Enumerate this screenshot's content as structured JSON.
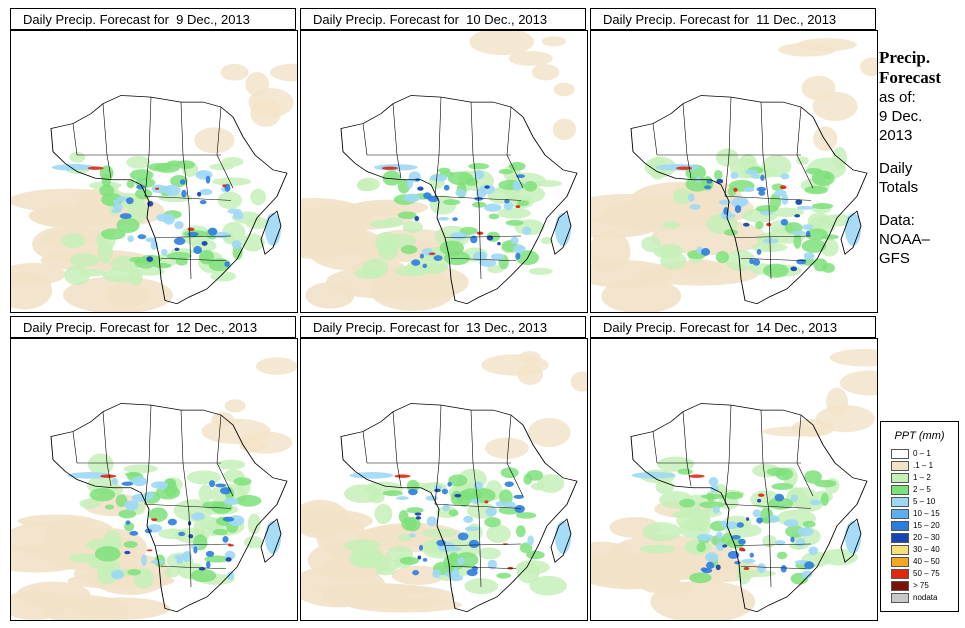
{
  "panels": [
    {
      "title_prefix": "Daily Precip. Forecast for",
      "date": "9 Dec., 2013"
    },
    {
      "title_prefix": "Daily Precip. Forecast for",
      "date": "10 Dec., 2013"
    },
    {
      "title_prefix": "Daily Precip. Forecast for",
      "date": "11 Dec., 2013"
    },
    {
      "title_prefix": "Daily Precip. Forecast for",
      "date": "12 Dec., 2013"
    },
    {
      "title_prefix": "Daily Precip. Forecast for",
      "date": "13 Dec., 2013"
    },
    {
      "title_prefix": "Daily Precip. Forecast for",
      "date": "14 Dec., 2013"
    }
  ],
  "sidebar": {
    "title_line1": "Precip.",
    "title_line2": "Forecast",
    "asof_line1": "as of:",
    "asof_line2": "9 Dec.",
    "asof_line3": "2013",
    "daily_line1": "Daily",
    "daily_line2": "Totals",
    "data_line1": "Data:",
    "data_line2": "NOAA–",
    "data_line3": "GFS"
  },
  "legend": {
    "title": "PPT (mm)",
    "items": [
      {
        "label": "0 – 1",
        "color": "#ffffff"
      },
      {
        "label": ".1 – 1",
        "color": "#f2e2c8"
      },
      {
        "label": "1 – 2",
        "color": "#c6f0b8"
      },
      {
        "label": "2 – 5",
        "color": "#7ee07a"
      },
      {
        "label": "5 – 10",
        "color": "#9ed8f5"
      },
      {
        "label": "10 – 15",
        "color": "#5ab0ef"
      },
      {
        "label": "15 – 20",
        "color": "#2c7de0"
      },
      {
        "label": "20 – 30",
        "color": "#1846b0"
      },
      {
        "label": "30 – 40",
        "color": "#f7e07a"
      },
      {
        "label": "40 – 50",
        "color": "#f5a623"
      },
      {
        "label": "50 – 75",
        "color": "#e02810"
      },
      {
        "label": "> 75",
        "color": "#7a1208"
      },
      {
        "label": "nodata",
        "color": "#c8c8c8"
      }
    ]
  },
  "colors": {
    "ocean_dry": "#f2e2c8",
    "light_green": "#c6f0b8",
    "green": "#7ee07a",
    "light_blue": "#9ed8f5",
    "blue": "#2c7de0",
    "dark_blue": "#1846b0",
    "red": "#e02810",
    "orange": "#f5a623"
  }
}
